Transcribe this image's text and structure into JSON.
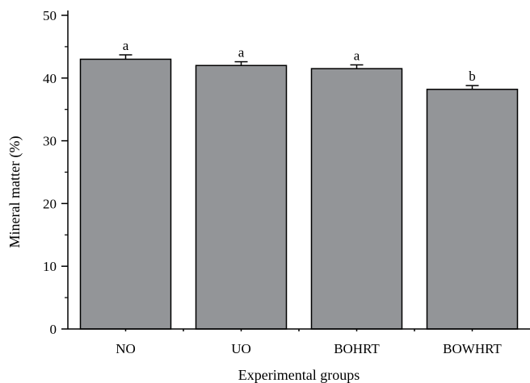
{
  "chart_data": {
    "type": "bar",
    "xlabel": "Experimental groups",
    "ylabel": "Mineral matter (%)",
    "categories": [
      "NO",
      "UO",
      "BOHRT",
      "BOWHRT"
    ],
    "values": [
      43.0,
      42.0,
      41.5,
      38.2
    ],
    "errors": [
      0.7,
      0.6,
      0.6,
      0.6
    ],
    "significance": [
      "a",
      "a",
      "a",
      "b"
    ],
    "ylim": [
      0,
      50
    ],
    "yticks": [
      0,
      10,
      20,
      30,
      40,
      50
    ],
    "grid": false,
    "bar_color": "#939598",
    "edge_color": "#000000"
  }
}
